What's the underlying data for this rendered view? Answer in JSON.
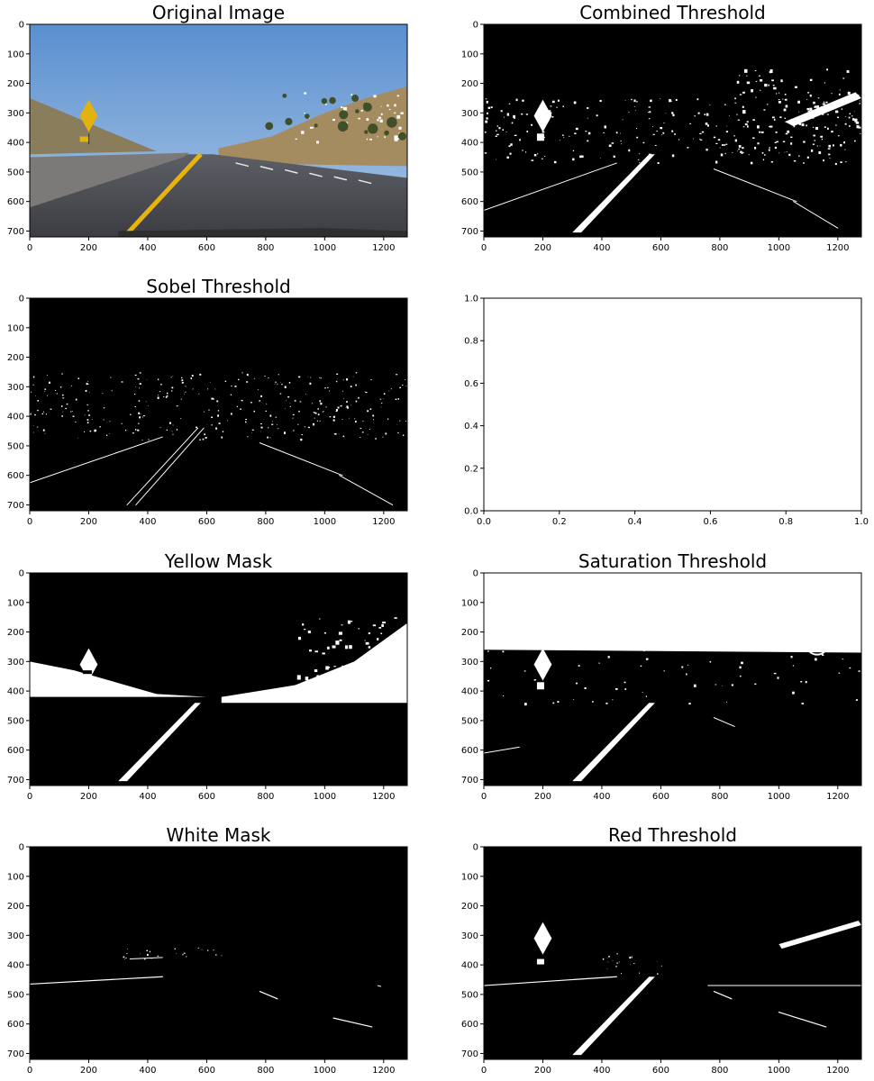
{
  "figure": {
    "background": "#ffffff"
  },
  "chart_data": [
    {
      "type": "image",
      "title": "Original Image",
      "content": "color road photo",
      "xlim": [
        0,
        1280
      ],
      "ylim": [
        720,
        0
      ],
      "xticks": [
        "0",
        "200",
        "400",
        "600",
        "800",
        "1000",
        "1200"
      ],
      "yticks": [
        "0",
        "100",
        "200",
        "300",
        "400",
        "500",
        "600",
        "700"
      ]
    },
    {
      "type": "image",
      "title": "Combined Threshold",
      "content": "binary mask",
      "xlim": [
        0,
        1280
      ],
      "ylim": [
        720,
        0
      ],
      "xticks": [
        "0",
        "200",
        "400",
        "600",
        "800",
        "1000",
        "1200"
      ],
      "yticks": [
        "0",
        "100",
        "200",
        "300",
        "400",
        "500",
        "600",
        "700"
      ]
    },
    {
      "type": "image",
      "title": "Sobel Threshold",
      "content": "binary mask",
      "xlim": [
        0,
        1280
      ],
      "ylim": [
        720,
        0
      ],
      "xticks": [
        "0",
        "200",
        "400",
        "600",
        "800",
        "1000",
        "1200"
      ],
      "yticks": [
        "0",
        "100",
        "200",
        "300",
        "400",
        "500",
        "600",
        "700"
      ]
    },
    {
      "type": "empty",
      "title": "",
      "xlim": [
        0,
        1
      ],
      "ylim": [
        0,
        1
      ],
      "xticks": [
        "0.0",
        "0.2",
        "0.4",
        "0.6",
        "0.8",
        "1.0"
      ],
      "yticks": [
        "0.0",
        "0.2",
        "0.4",
        "0.6",
        "0.8",
        "1.0"
      ]
    },
    {
      "type": "image",
      "title": "Yellow Mask",
      "content": "binary mask",
      "xlim": [
        0,
        1280
      ],
      "ylim": [
        720,
        0
      ],
      "xticks": [
        "0",
        "200",
        "400",
        "600",
        "800",
        "1000",
        "1200"
      ],
      "yticks": [
        "0",
        "100",
        "200",
        "300",
        "400",
        "500",
        "600",
        "700"
      ]
    },
    {
      "type": "image",
      "title": "Saturation Threshold",
      "content": "binary mask",
      "xlim": [
        0,
        1280
      ],
      "ylim": [
        720,
        0
      ],
      "xticks": [
        "0",
        "200",
        "400",
        "600",
        "800",
        "1000",
        "1200"
      ],
      "yticks": [
        "0",
        "100",
        "200",
        "300",
        "400",
        "500",
        "600",
        "700"
      ]
    },
    {
      "type": "image",
      "title": "White Mask",
      "content": "binary mask",
      "xlim": [
        0,
        1280
      ],
      "ylim": [
        720,
        0
      ],
      "xticks": [
        "0",
        "200",
        "400",
        "600",
        "800",
        "1000",
        "1200"
      ],
      "yticks": [
        "0",
        "100",
        "200",
        "300",
        "400",
        "500",
        "600",
        "700"
      ]
    },
    {
      "type": "image",
      "title": "Red Threshold",
      "content": "binary mask",
      "xlim": [
        0,
        1280
      ],
      "ylim": [
        720,
        0
      ],
      "xticks": [
        "0",
        "200",
        "400",
        "600",
        "800",
        "1000",
        "1200"
      ],
      "yticks": [
        "0",
        "100",
        "200",
        "300",
        "400",
        "500",
        "600",
        "700"
      ]
    }
  ]
}
